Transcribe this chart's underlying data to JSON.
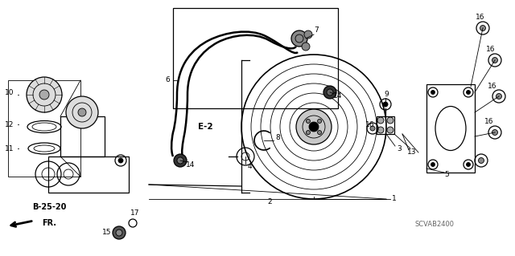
{
  "bg_color": "#ffffff",
  "fig_width": 6.4,
  "fig_height": 3.19,
  "dpi": 100,
  "diagram_code": "SCVAB2400",
  "ref_label": "B-25-20",
  "dir_label": "FR.",
  "box_label": "E-2"
}
